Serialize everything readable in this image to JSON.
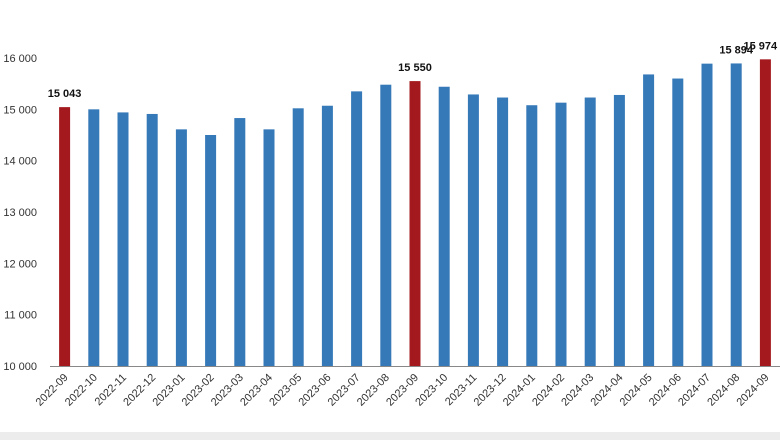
{
  "chart_data": {
    "type": "bar",
    "title": "",
    "xlabel": "",
    "ylabel": "",
    "ylim": [
      10000,
      16000
    ],
    "yticks": [
      10000,
      11000,
      12000,
      13000,
      14000,
      15000,
      16000
    ],
    "ytick_labels": [
      "10 000",
      "11 000",
      "12 000",
      "13 000",
      "14 000",
      "15 000",
      "16 000"
    ],
    "grid": false,
    "legend": "none",
    "categories": [
      "2022-09",
      "2022-10",
      "2022-11",
      "2022-12",
      "2023-01",
      "2023-02",
      "2023-03",
      "2023-04",
      "2023-05",
      "2023-06",
      "2023-07",
      "2023-08",
      "2023-09",
      "2023-10",
      "2023-11",
      "2023-12",
      "2024-01",
      "2024-02",
      "2024-03",
      "2024-04",
      "2024-05",
      "2024-06",
      "2024-07",
      "2024-08",
      "2024-09"
    ],
    "values": [
      15043,
      15000,
      14940,
      14910,
      14610,
      14500,
      14830,
      14610,
      15020,
      15070,
      15350,
      15480,
      15550,
      15440,
      15290,
      15230,
      15080,
      15130,
      15230,
      15280,
      15680,
      15600,
      15890,
      15894,
      15974
    ],
    "highlighted": [
      0,
      12,
      24
    ],
    "data_labels": {
      "0": "15 043",
      "12": "15 550",
      "23": "15 894",
      "24": "15 974"
    },
    "colors": {
      "bar": "#3579b8",
      "highlight": "#a3191e",
      "axis": "#888888"
    }
  }
}
